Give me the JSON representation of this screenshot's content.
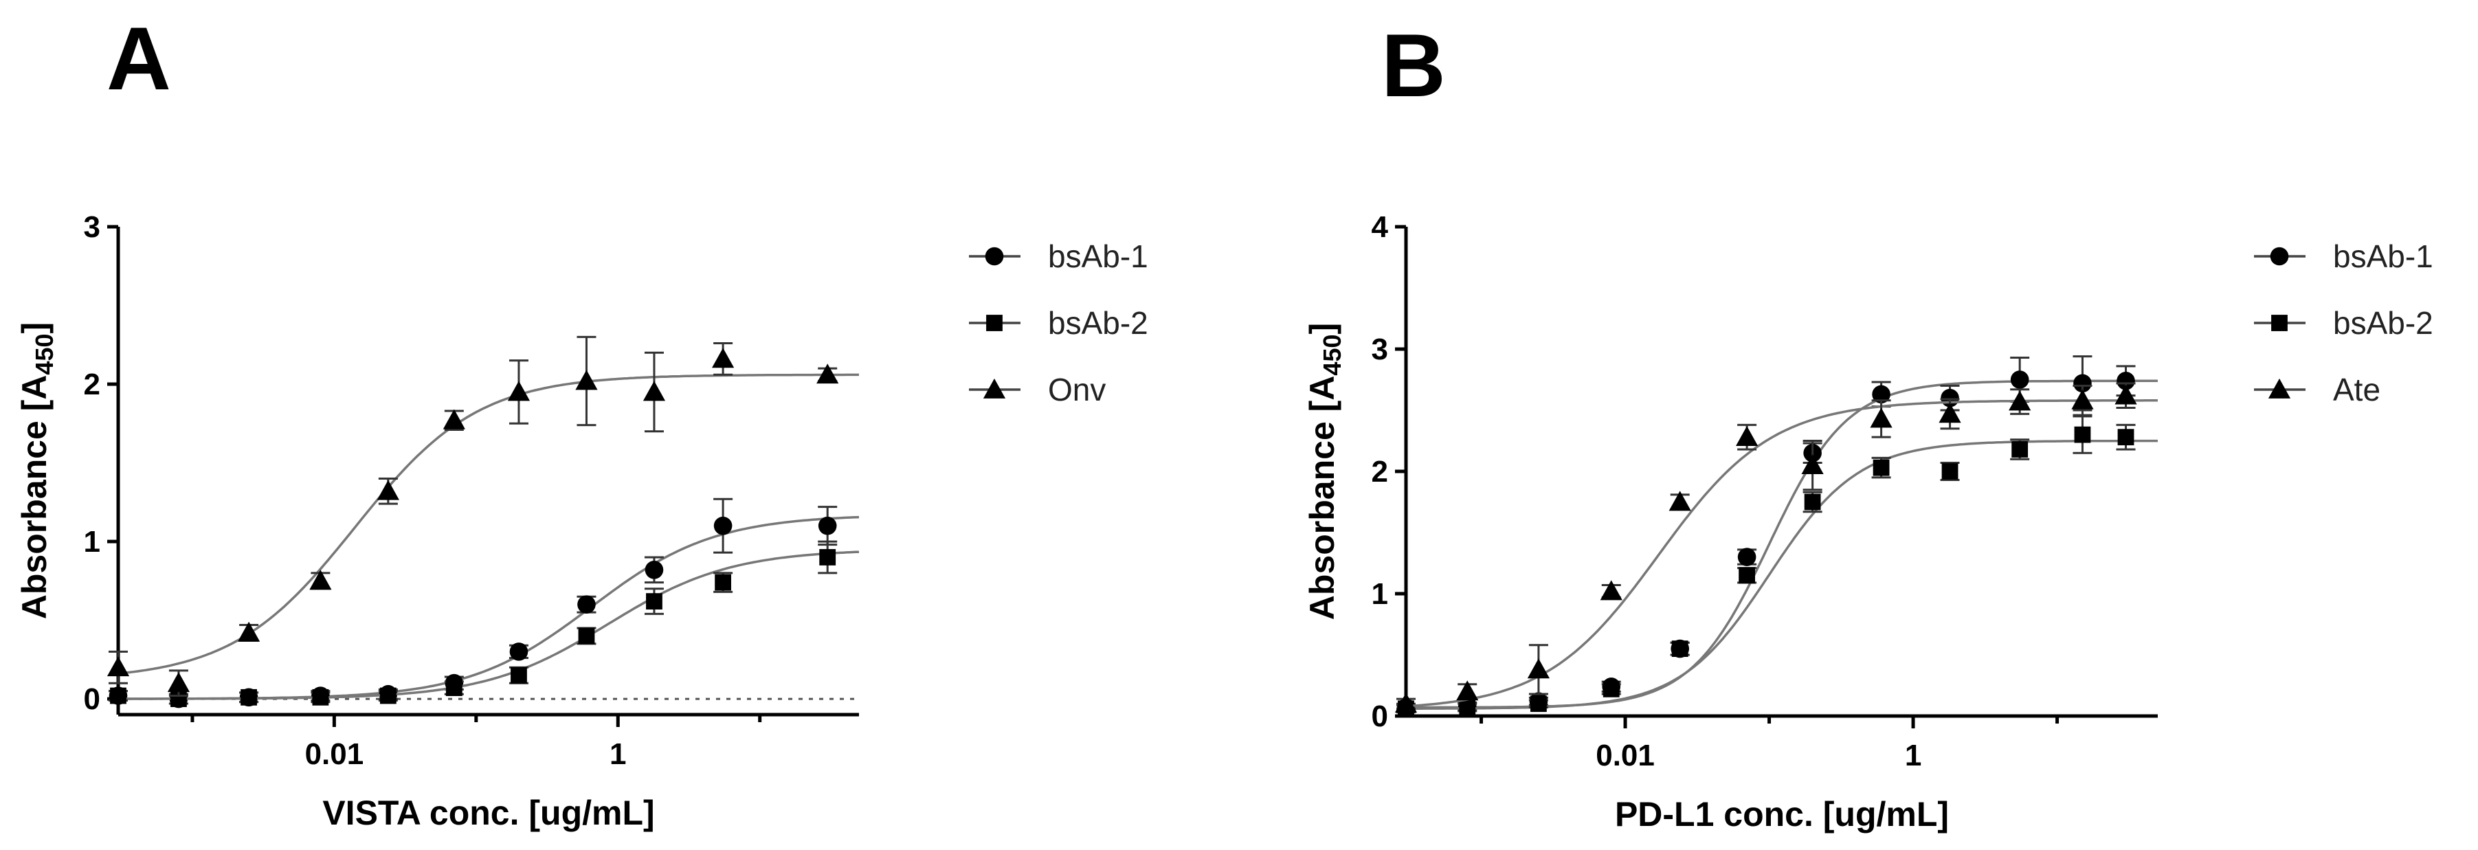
{
  "chart_data": [
    {
      "type": "scatter",
      "panel_label": "A",
      "xlabel": "VISTA conc. [ug/mL]",
      "ylabel_main": "Absorbance [A",
      "ylabel_sub": "450",
      "ylabel_close": "]",
      "x_scale": "log",
      "xlim": [
        0.0003,
        50
      ],
      "ylim": [
        -0.1,
        3
      ],
      "x_ticks": [
        {
          "value": 0.01,
          "label": "0.01"
        },
        {
          "value": 1,
          "label": "1"
        }
      ],
      "y_ticks": [
        {
          "value": 0,
          "label": "0"
        },
        {
          "value": 1,
          "label": "1"
        },
        {
          "value": 2,
          "label": "2"
        },
        {
          "value": 3,
          "label": "3"
        }
      ],
      "baseline": {
        "y": 0,
        "style": "dotted"
      },
      "legend_position": "right",
      "series": [
        {
          "name": "bsAb-1",
          "marker": "circle",
          "x": [
            0.0003,
            0.0008,
            0.0025,
            0.008,
            0.024,
            0.07,
            0.2,
            0.6,
            1.8,
            5.5,
            30
          ],
          "y": [
            0.02,
            0.0,
            0.01,
            0.02,
            0.03,
            0.1,
            0.3,
            0.6,
            0.82,
            1.1,
            1.1
          ],
          "err": [
            0.03,
            0.03,
            0.03,
            0.03,
            0.03,
            0.04,
            0.04,
            0.05,
            0.08,
            0.17,
            0.12
          ],
          "fit": {
            "bottom": 0.0,
            "top": 1.17,
            "ec50": 0.65,
            "hill": 1.0
          }
        },
        {
          "name": "bsAb-2",
          "marker": "square",
          "x": [
            0.0003,
            0.0008,
            0.0025,
            0.008,
            0.024,
            0.07,
            0.2,
            0.6,
            1.8,
            5.5,
            30
          ],
          "y": [
            0.02,
            0.0,
            0.01,
            0.01,
            0.02,
            0.07,
            0.15,
            0.4,
            0.62,
            0.74,
            0.9
          ],
          "err": [
            0.03,
            0.03,
            0.03,
            0.03,
            0.03,
            0.04,
            0.05,
            0.05,
            0.08,
            0.06,
            0.1
          ],
          "fit": {
            "bottom": 0.0,
            "top": 0.95,
            "ec50": 0.85,
            "hill": 1.0
          }
        },
        {
          "name": "Onv",
          "marker": "triangle",
          "x": [
            0.0003,
            0.0008,
            0.0025,
            0.008,
            0.024,
            0.07,
            0.2,
            0.6,
            1.8,
            5.5,
            30
          ],
          "y": [
            0.2,
            0.1,
            0.42,
            0.75,
            1.32,
            1.77,
            1.95,
            2.02,
            1.95,
            2.16,
            2.06
          ],
          "err": [
            0.1,
            0.08,
            0.05,
            0.05,
            0.08,
            0.06,
            0.2,
            0.28,
            0.25,
            0.1,
            0.04
          ],
          "fit": {
            "bottom": 0.12,
            "top": 2.06,
            "ec50": 0.014,
            "hill": 1.0
          }
        }
      ]
    },
    {
      "type": "scatter",
      "panel_label": "B",
      "xlabel": "PD-L1 conc. [ug/mL]",
      "ylabel_main": "Absorbance [A",
      "ylabel_sub": "450",
      "ylabel_close": "]",
      "x_scale": "log",
      "xlim": [
        0.0003,
        50
      ],
      "ylim": [
        0,
        4
      ],
      "x_ticks": [
        {
          "value": 0.01,
          "label": "0.01"
        },
        {
          "value": 1,
          "label": "1"
        }
      ],
      "y_ticks": [
        {
          "value": 0,
          "label": "0"
        },
        {
          "value": 1,
          "label": "1"
        },
        {
          "value": 2,
          "label": "2"
        },
        {
          "value": 3,
          "label": "3"
        },
        {
          "value": 4,
          "label": "4"
        }
      ],
      "legend_position": "right",
      "series": [
        {
          "name": "bsAb-1",
          "marker": "circle",
          "x": [
            0.0003,
            0.0008,
            0.0025,
            0.008,
            0.024,
            0.07,
            0.2,
            0.6,
            1.8,
            5.5,
            15,
            30
          ],
          "y": [
            0.07,
            0.08,
            0.12,
            0.24,
            0.55,
            1.3,
            2.15,
            2.63,
            2.6,
            2.75,
            2.72,
            2.74
          ],
          "err": [
            0.03,
            0.03,
            0.03,
            0.04,
            0.05,
            0.06,
            0.08,
            0.1,
            0.1,
            0.18,
            0.22,
            0.12
          ],
          "fit": {
            "bottom": 0.07,
            "top": 2.74,
            "ec50": 0.1,
            "hill": 1.6
          }
        },
        {
          "name": "bsAb-2",
          "marker": "square",
          "x": [
            0.0003,
            0.0008,
            0.0025,
            0.008,
            0.024,
            0.07,
            0.2,
            0.6,
            1.8,
            5.5,
            15,
            30
          ],
          "y": [
            0.06,
            0.07,
            0.1,
            0.22,
            0.55,
            1.15,
            1.75,
            2.03,
            2.0,
            2.18,
            2.3,
            2.28
          ],
          "err": [
            0.03,
            0.03,
            0.03,
            0.04,
            0.05,
            0.06,
            0.08,
            0.08,
            0.07,
            0.08,
            0.15,
            0.1
          ],
          "fit": {
            "bottom": 0.06,
            "top": 2.25,
            "ec50": 0.1,
            "hill": 1.4
          }
        },
        {
          "name": "Ate",
          "marker": "triangle",
          "x": [
            0.0003,
            0.0008,
            0.0025,
            0.008,
            0.024,
            0.07,
            0.2,
            0.6,
            1.8,
            5.5,
            15,
            30
          ],
          "y": [
            0.1,
            0.2,
            0.38,
            1.02,
            1.75,
            2.28,
            2.05,
            2.43,
            2.47,
            2.57,
            2.58,
            2.62
          ],
          "err": [
            0.04,
            0.06,
            0.2,
            0.05,
            0.06,
            0.1,
            0.2,
            0.15,
            0.12,
            0.1,
            0.12,
            0.1
          ],
          "fit": {
            "bottom": 0.05,
            "top": 2.58,
            "ec50": 0.017,
            "hill": 1.1
          }
        }
      ]
    }
  ]
}
